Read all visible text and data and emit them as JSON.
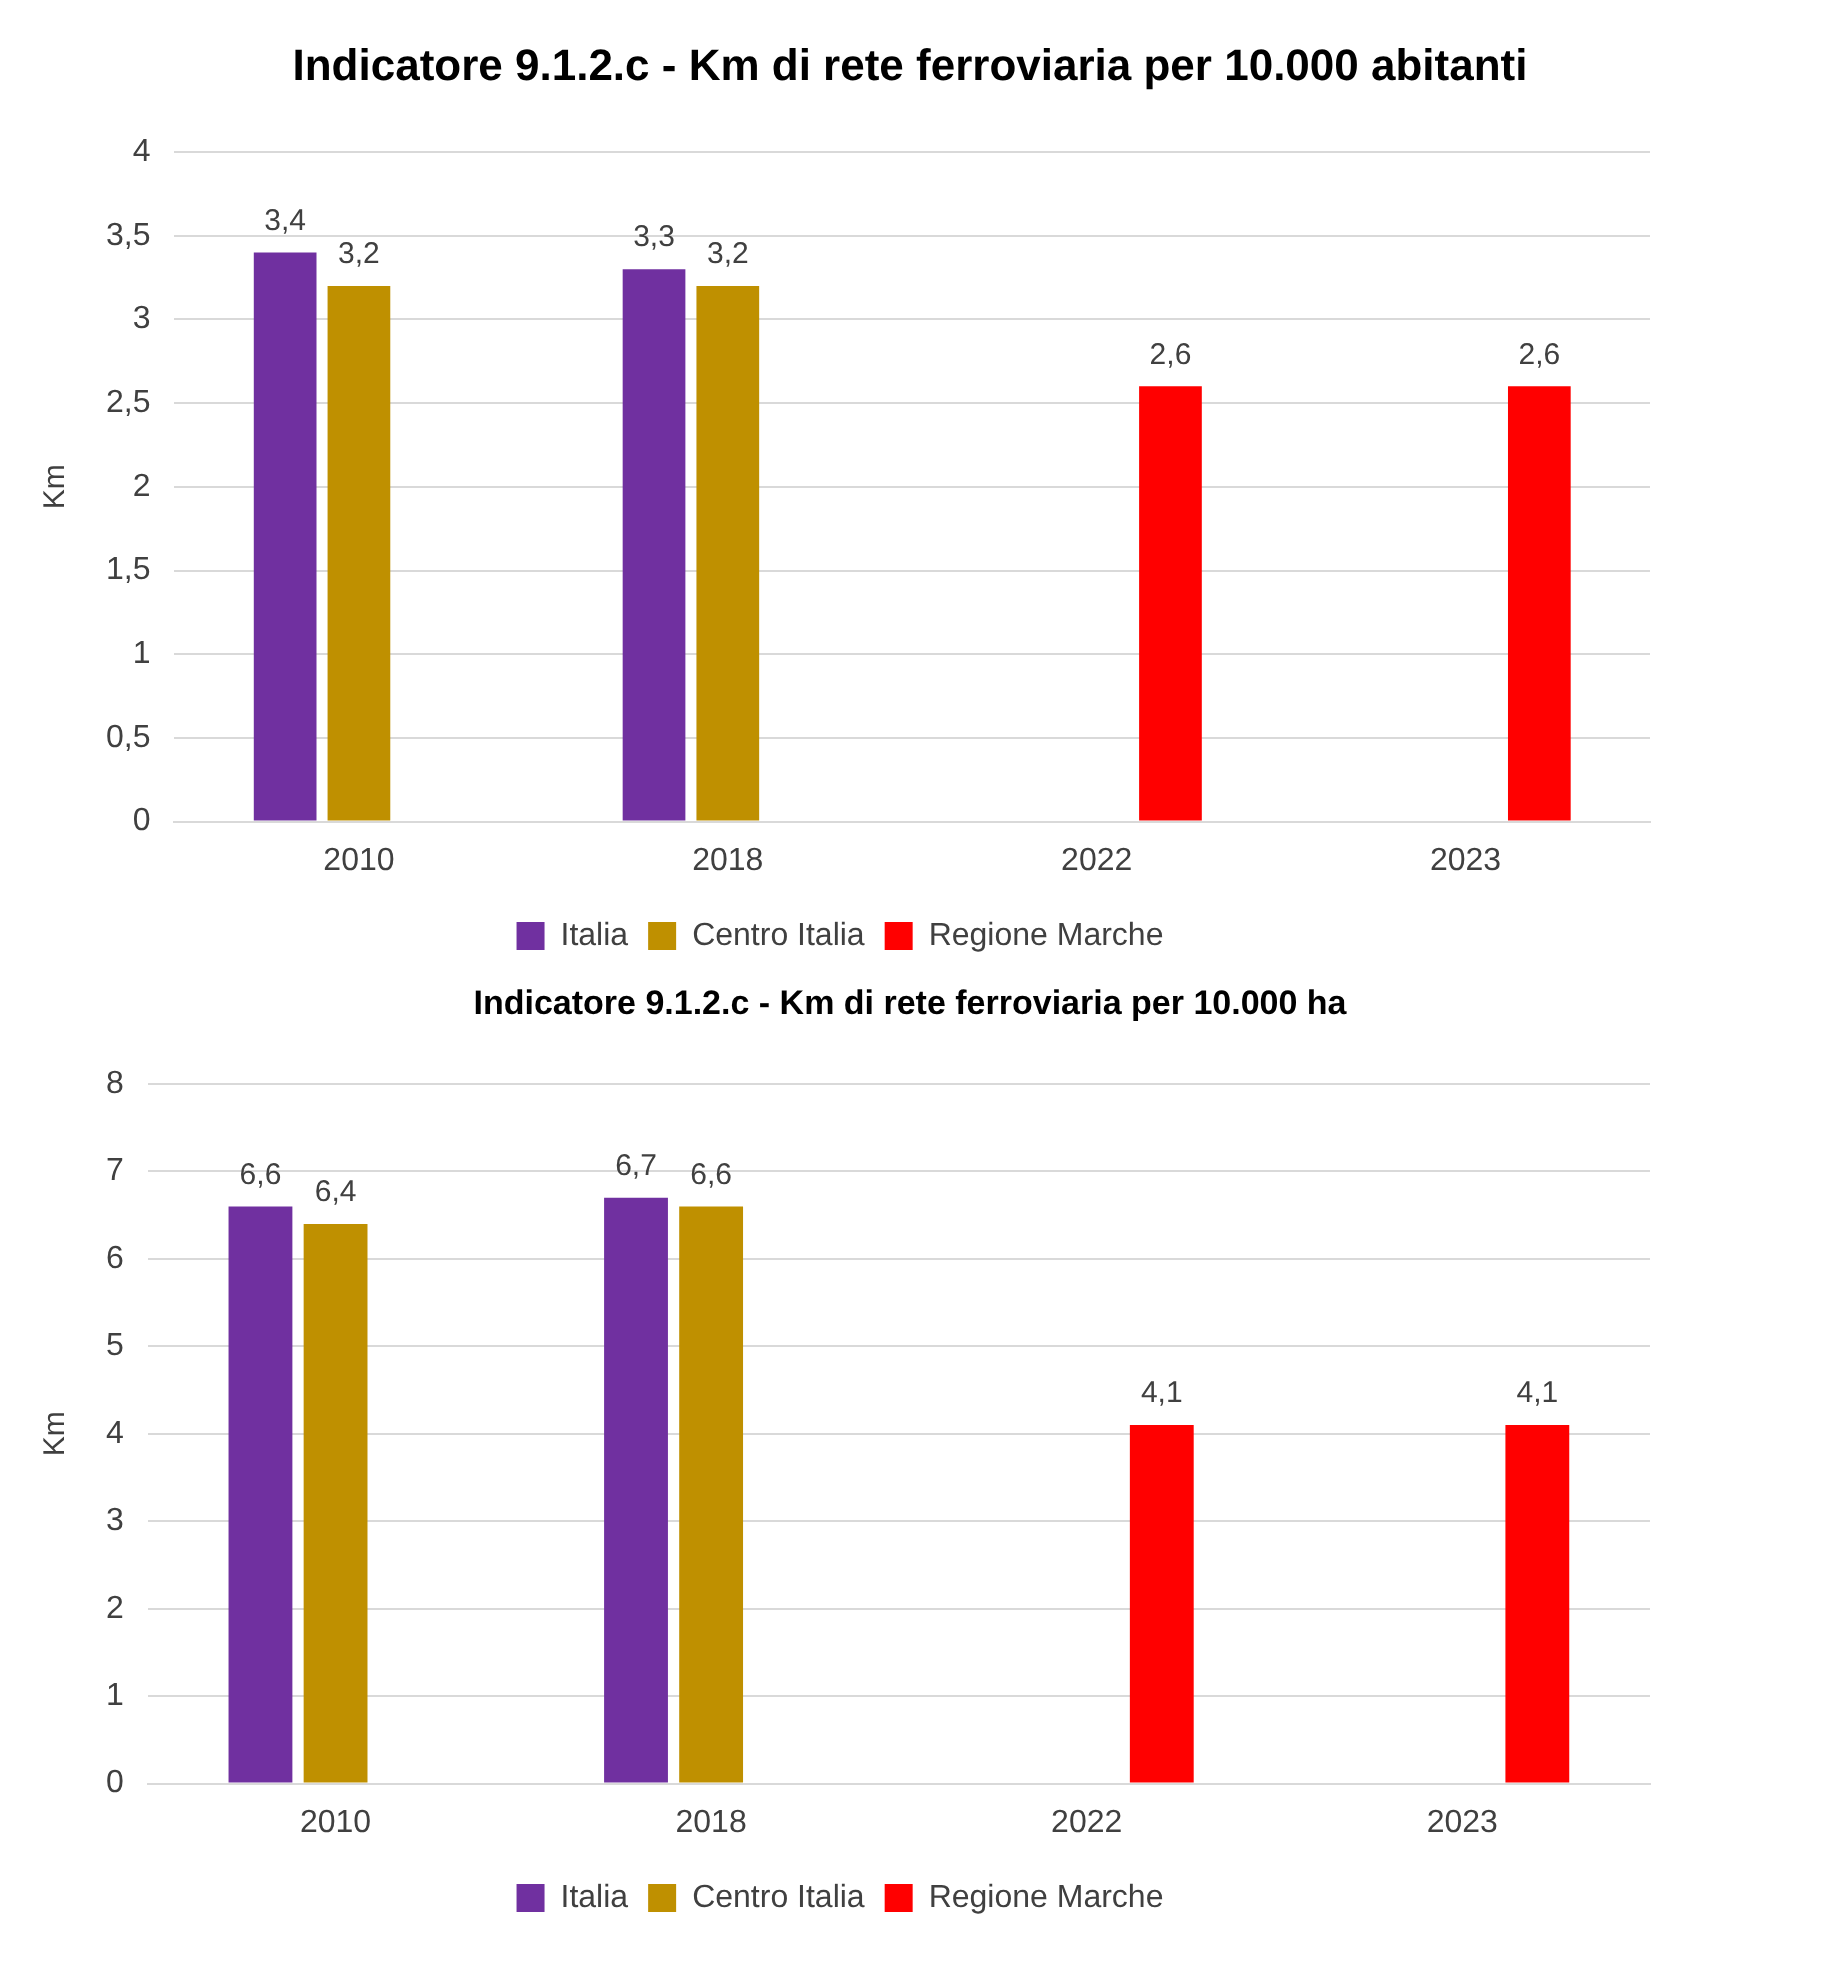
{
  "chart_data": [
    {
      "type": "bar",
      "title": "Indicatore 9.1.2.c - Km di rete ferroviaria per 10.000 abitanti",
      "ylabel": "Km",
      "categories": [
        "2010",
        "2018",
        "2022",
        "2023"
      ],
      "series": [
        {
          "name": "Italia",
          "color": "#7030a0",
          "values": [
            3.4,
            3.3,
            null,
            null
          ],
          "value_labels": [
            "3,4",
            "3,3",
            null,
            null
          ]
        },
        {
          "name": "Centro Italia",
          "color": "#bf9000",
          "values": [
            3.2,
            3.2,
            null,
            null
          ],
          "value_labels": [
            "3,2",
            "3,2",
            null,
            null
          ]
        },
        {
          "name": "Regione Marche",
          "color": "#ff0000",
          "values": [
            null,
            null,
            2.6,
            2.6
          ],
          "value_labels": [
            null,
            null,
            "2,6",
            "2,6"
          ]
        }
      ],
      "ylim": [
        0,
        4
      ],
      "yticks": [
        0,
        {
          "value": 0.5,
          "label": "0,5"
        },
        1,
        {
          "value": 1.5,
          "label": "1,5"
        },
        2,
        {
          "value": 2.5,
          "label": "2,5"
        },
        3,
        {
          "value": 3.5,
          "label": "3,5"
        },
        4
      ],
      "grid": "y",
      "legend": "bottom"
    },
    {
      "type": "bar",
      "title": "Indicatore 9.1.2.c - Km di rete ferroviaria per 10.000 ha",
      "ylabel": "Km",
      "categories": [
        "2010",
        "2018",
        "2022",
        "2023"
      ],
      "series": [
        {
          "name": "Italia",
          "color": "#7030a0",
          "values": [
            6.6,
            6.7,
            null,
            null
          ],
          "value_labels": [
            "6,6",
            "6,7",
            null,
            null
          ]
        },
        {
          "name": "Centro Italia",
          "color": "#bf9000",
          "values": [
            6.4,
            6.6,
            null,
            null
          ],
          "value_labels": [
            "6,4",
            "6,6",
            null,
            null
          ]
        },
        {
          "name": "Regione Marche",
          "color": "#ff0000",
          "values": [
            null,
            null,
            4.1,
            4.1
          ],
          "value_labels": [
            null,
            null,
            "4,1",
            "4,1"
          ]
        }
      ],
      "ylim": [
        0,
        8
      ],
      "yticks": [
        0,
        1,
        2,
        3,
        4,
        5,
        6,
        7,
        8
      ],
      "grid": "y",
      "legend": "bottom"
    }
  ]
}
